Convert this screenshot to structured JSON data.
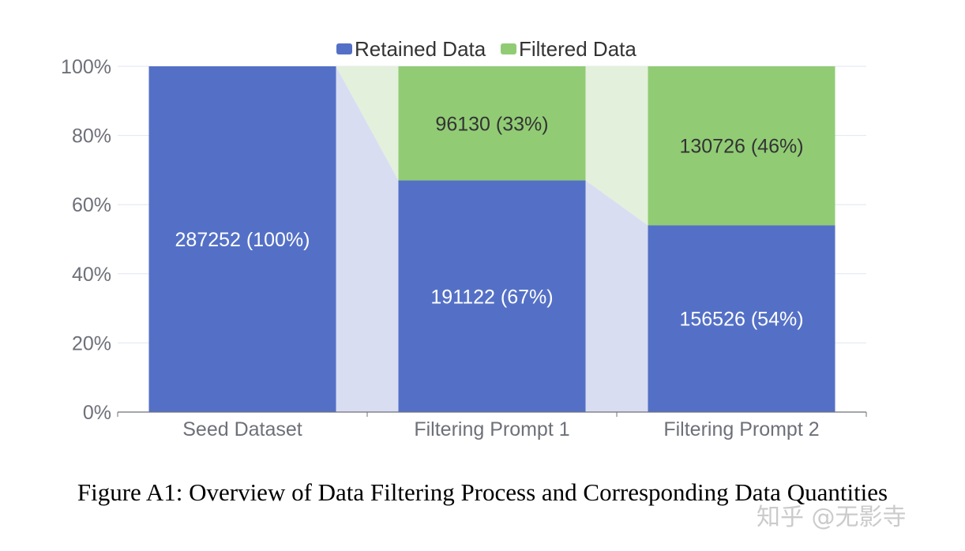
{
  "chart_data": {
    "type": "bar",
    "stacked": true,
    "categories": [
      "Seed Dataset",
      "Filtering Prompt 1",
      "Filtering Prompt 2"
    ],
    "series": [
      {
        "name": "Retained Data",
        "values": [
          100,
          67,
          54
        ],
        "labels": [
          "287252 (100%)",
          "191122 (67%)",
          "156526 (54%)"
        ]
      },
      {
        "name": "Filtered Data",
        "values": [
          0,
          33,
          46
        ],
        "labels": [
          "",
          "96130 (33%)",
          "130726 (46%)"
        ]
      }
    ],
    "ylim": [
      0,
      100
    ],
    "yticks": [
      "0%",
      "20%",
      "40%",
      "60%",
      "80%",
      "100%"
    ],
    "grid": true,
    "legend_position": "top-center"
  },
  "colors": {
    "retained": "#5470c6",
    "filtered": "#91cc75",
    "retained_band": "#d9ddf2",
    "filtered_band": "#e3f0dc",
    "retained_label": "#ffffff",
    "filtered_label": "#333333"
  },
  "caption": "Figure A1: Overview of Data Filtering Process and Corresponding Data Quantities",
  "watermark": "知乎 @无影寺"
}
